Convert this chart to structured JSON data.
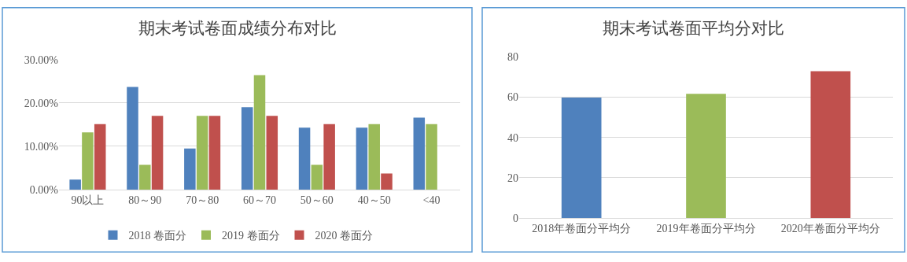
{
  "chart_data": [
    {
      "type": "bar",
      "title": "期末考试卷面成绩分布对比",
      "categories": [
        "90以上",
        "80～90",
        "70～80",
        "60～70",
        "50～60",
        "40～50",
        "<40"
      ],
      "series": [
        {
          "name": "2018 卷面分",
          "color": "#4f81bd",
          "values": [
            2.3,
            23.7,
            9.5,
            19.0,
            14.3,
            14.3,
            16.6
          ]
        },
        {
          "name": "2019 卷面分",
          "color": "#9bbb59",
          "values": [
            13.2,
            5.7,
            17.0,
            26.4,
            5.7,
            15.1,
            15.1
          ]
        },
        {
          "name": "2020 卷面分",
          "color": "#c0504d",
          "values": [
            15.1,
            17.0,
            17.0,
            17.0,
            15.1,
            3.7,
            null
          ]
        }
      ],
      "ylim": [
        0,
        30
      ],
      "yticks": [
        {
          "value": 0,
          "label": "0.00%"
        },
        {
          "value": 10,
          "label": "10.00%"
        },
        {
          "value": 20,
          "label": "20.00%"
        },
        {
          "value": 30,
          "label": "30.00%"
        }
      ],
      "grid": "y",
      "legend": "bottom"
    },
    {
      "type": "bar",
      "title": "期末考试卷面平均分对比",
      "categories": [
        "2018年卷面分平均分",
        "2019年卷面分平均分",
        "2020年卷面分平均分"
      ],
      "values": [
        59.7,
        61.6,
        72.8
      ],
      "colors": [
        "#4f81bd",
        "#9bbb59",
        "#c0504d"
      ],
      "ylim": [
        0,
        80
      ],
      "yticks": [
        0,
        20,
        40,
        60,
        80
      ],
      "grid": "y"
    }
  ]
}
